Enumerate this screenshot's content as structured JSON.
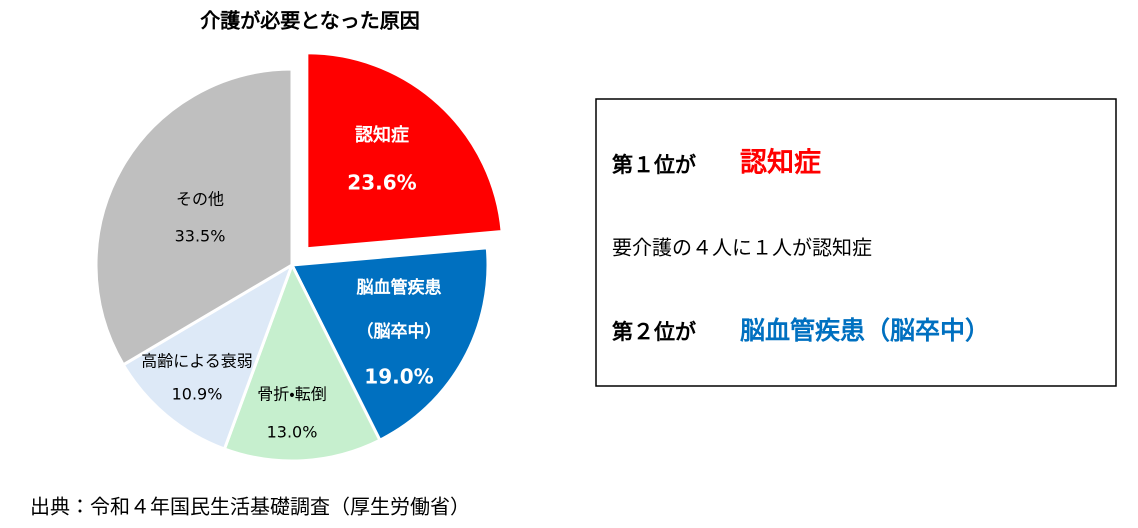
{
  "chart_data": {
    "type": "pie",
    "title": "介護が必要となった原因",
    "categories": [
      "認知症",
      "脳血管疾患（脳卒中）",
      "骨折・転倒",
      "高齢による衰弱",
      "その他"
    ],
    "values": [
      23.6,
      19.0,
      13.0,
      10.9,
      33.5
    ],
    "value_labels": [
      "23.6%",
      "19.0%",
      "13.0%",
      "10.9%",
      "33.5%"
    ],
    "colors": [
      "#ff0000",
      "#0070c0",
      "#c6efce",
      "#dde9f7",
      "#bfbfbf"
    ]
  },
  "panel": {
    "line1": {
      "prefix": "第１位が",
      "highlight": "認知症"
    },
    "line2": "要介護の４人に１人が認知症",
    "line3": {
      "prefix": "第２位が",
      "highlight": "脳血管疾患（脳卒中）"
    }
  },
  "source": "出典：令和４年国民生活基礎調査（厚生労働省）"
}
